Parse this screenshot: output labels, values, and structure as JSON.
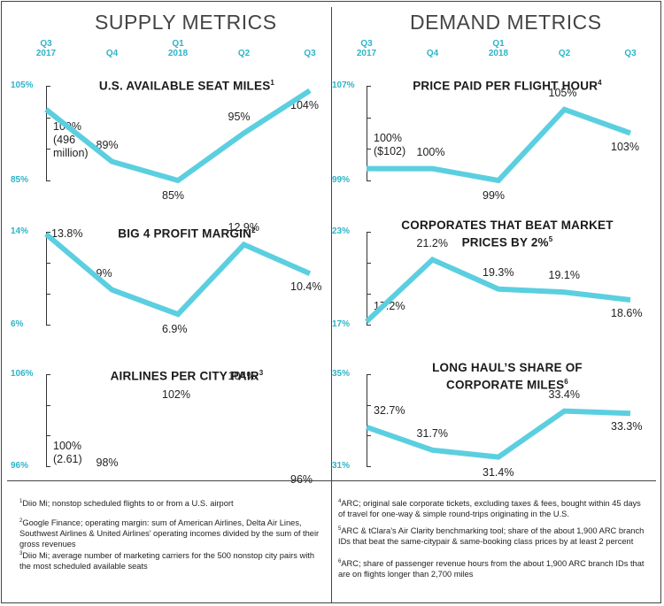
{
  "headers": {
    "supply": "SUPPLY METRICS",
    "demand": "DEMAND METRICS"
  },
  "quarters": [
    {
      "l1": "Q3",
      "l2": "2017"
    },
    {
      "l1": "",
      "l2": "Q4"
    },
    {
      "l1": "Q1",
      "l2": "2018"
    },
    {
      "l1": "",
      "l2": "Q2"
    },
    {
      "l1": "",
      "l2": "Q3"
    }
  ],
  "accent_color": "#5bcfe0",
  "chart_data": [
    {
      "type": "line",
      "title": "U.S. AVAILABLE SEAT MILES",
      "note": "1",
      "categories": [
        "Q3 2017",
        "Q4",
        "Q1 2018",
        "Q2",
        "Q3"
      ],
      "values": [
        100,
        89,
        85,
        95,
        104
      ],
      "labels": [
        "100%\n(496\nmillion)",
        "89%",
        "85%",
        "95%",
        "104%"
      ],
      "yticks": [
        "105%",
        "85%"
      ],
      "ylim": [
        85,
        105
      ]
    },
    {
      "type": "line",
      "title": "BIG 4 PROFIT MARGIN",
      "note": "2",
      "categories": [
        "Q3 2017",
        "Q4",
        "Q1 2018",
        "Q2",
        "Q3"
      ],
      "values": [
        13.8,
        9,
        6.9,
        12.9,
        10.4
      ],
      "labels": [
        "13.8%",
        "9%",
        "6.9%",
        "12.9%",
        "10.4%"
      ],
      "yticks": [
        "14%",
        "6%"
      ],
      "ylim": [
        6,
        14
      ]
    },
    {
      "type": "line",
      "title": "AIRLINES PER CITY PAIR",
      "note": "3",
      "categories": [
        "Q3 2017",
        "Q4",
        "Q1 2018",
        "Q2",
        "Q3"
      ],
      "values": [
        100,
        98,
        102,
        104,
        96
      ],
      "labels": [
        "100%\n(2.61)",
        "98%",
        "102%",
        "104%",
        "96%"
      ],
      "yticks": [
        "106%",
        "96%"
      ],
      "ylim": [
        96,
        106
      ],
      "line_visible": false
    },
    {
      "type": "line",
      "title": "PRICE PAID PER FLIGHT HOUR",
      "note": "4",
      "categories": [
        "Q3 2017",
        "Q4",
        "Q1 2018",
        "Q2",
        "Q3"
      ],
      "values": [
        100,
        100,
        99,
        105,
        103
      ],
      "labels": [
        "100%\n($102)",
        "100%",
        "99%",
        "105%",
        "103%"
      ],
      "yticks": [
        "107%",
        "99%"
      ],
      "ylim": [
        99,
        107
      ]
    },
    {
      "type": "line",
      "title": "CORPORATES THAT BEAT MARKET\nPRICES BY 2%",
      "note": "5",
      "categories": [
        "Q3 2017",
        "Q4",
        "Q1 2018",
        "Q2",
        "Q3"
      ],
      "values": [
        17.2,
        21.2,
        19.3,
        19.1,
        18.6
      ],
      "labels": [
        "17.2%",
        "21.2%",
        "19.3%",
        "19.1%",
        "18.6%"
      ],
      "yticks": [
        "23%",
        "17%"
      ],
      "ylim": [
        17,
        23
      ]
    },
    {
      "type": "line",
      "title": "LONG HAUL’S SHARE OF\nCORPORATE MILES",
      "note": "6",
      "categories": [
        "Q3 2017",
        "Q4",
        "Q1 2018",
        "Q2",
        "Q3"
      ],
      "values": [
        32.7,
        31.7,
        31.4,
        33.4,
        33.3
      ],
      "labels": [
        "32.7%",
        "31.7%",
        "31.4%",
        "33.4%",
        "33.3%"
      ],
      "yticks": [
        "35%",
        "31%"
      ],
      "ylim": [
        31,
        35
      ]
    }
  ],
  "footnotes": {
    "left": [
      {
        "n": "1",
        "text": "Diio Mi; nonstop scheduled flights to or from a U.S. airport"
      },
      {
        "n": "2",
        "text": "Google Finance; operating margin: sum of American Airlines, Delta Air Lines, Southwest Airlines & United Airlines’ operating incomes divided by the sum of their gross revenues"
      },
      {
        "n": "3",
        "text": "Diio Mi; average number of marketing carriers for the 500 nonstop city pairs with the most scheduled available seats"
      }
    ],
    "right": [
      {
        "n": "4",
        "text": "ARC; original sale corporate tickets, excluding taxes & fees, bought within 45 days of travel for one-way & simple round-trips originating in the U.S."
      },
      {
        "n": "5",
        "text": "ARC & tClara’s Air Clarity benchmarking tool; share of the about 1,900 ARC branch IDs that beat the same-citypair & same-booking class prices by at least 2 percent"
      },
      {
        "n": "6",
        "text": "ARC; share of passenger revenue hours from the about 1,900 ARC branch IDs that are on flights longer than 2,700 miles"
      }
    ]
  }
}
